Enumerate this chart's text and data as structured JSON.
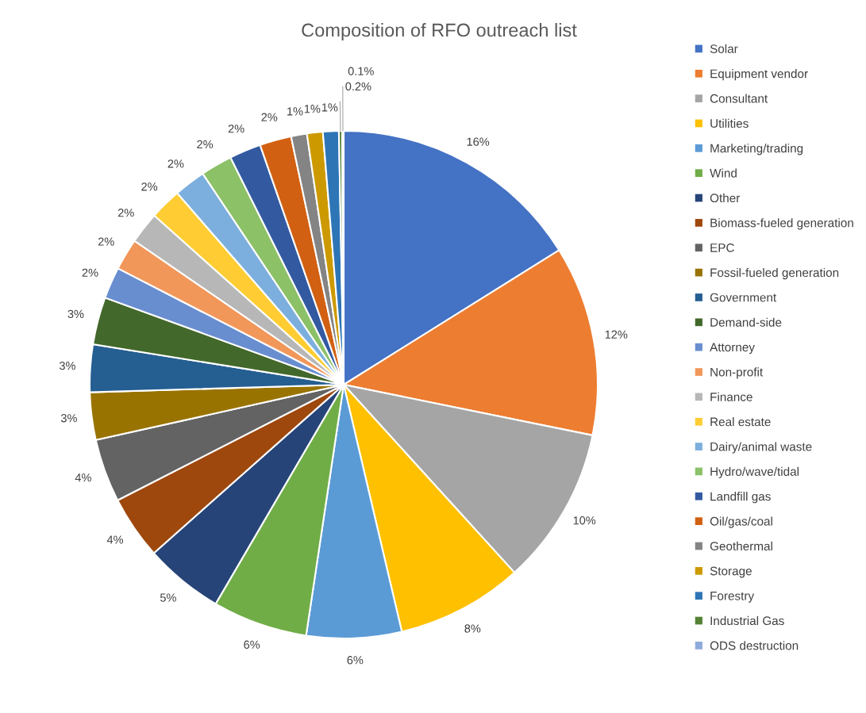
{
  "chart_data": {
    "type": "pie",
    "title": "Composition of RFO outreach list",
    "categories": [
      "Solar",
      "Equipment vendor",
      "Consultant",
      "Utilities",
      "Marketing/trading",
      "Wind",
      "Other",
      "Biomass-fueled generation",
      "EPC",
      "Fossil-fueled generation",
      "Government",
      "Demand-side",
      "Attorney",
      "Non-profit",
      "Finance",
      "Real estate",
      "Dairy/animal waste",
      "Hydro/wave/tidal",
      "Landfill gas",
      "Oil/gas/coal",
      "Geothermal",
      "Storage",
      "Forestry",
      "Industrial Gas",
      "ODS destruction"
    ],
    "values": [
      16,
      12,
      10,
      8,
      6,
      6,
      5,
      4,
      4,
      3,
      3,
      3,
      2,
      2,
      2,
      2,
      2,
      2,
      2,
      2,
      1,
      1,
      1,
      0.2,
      0.1
    ],
    "value_labels": [
      "16%",
      "12%",
      "10%",
      "8%",
      "6%",
      "6%",
      "5%",
      "4%",
      "4%",
      "3%",
      "3%",
      "3%",
      "2%",
      "2%",
      "2%",
      "2%",
      "2%",
      "2%",
      "2%",
      "2%",
      "1%",
      "1%",
      "1%",
      "0.2%",
      "0.1%"
    ],
    "colors": [
      "#4472c4",
      "#ed7d31",
      "#a5a5a5",
      "#ffc000",
      "#5b9bd5",
      "#70ad47",
      "#264478",
      "#9e480e",
      "#636363",
      "#997300",
      "#255e91",
      "#43682b",
      "#698ed0",
      "#f1975a",
      "#b7b7b7",
      "#ffcd33",
      "#7cafdd",
      "#8cc168",
      "#335aa1",
      "#d26012",
      "#848484",
      "#cc9a00",
      "#2e75b6",
      "#548235",
      "#8faadc"
    ],
    "legend": "right"
  }
}
